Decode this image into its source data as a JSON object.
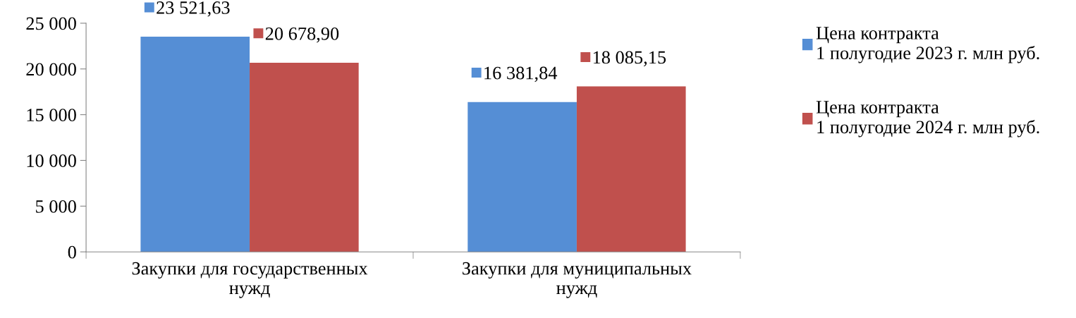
{
  "chart_data": {
    "type": "bar",
    "categories": [
      "Закупки для государственных\nнужд",
      "Закупки для муниципальных\nнужд"
    ],
    "series": [
      {
        "name": "Цена контракта\n1 полугодие 2023 г. млн руб.",
        "color": "#558ed5",
        "values": [
          23521.63,
          16381.84
        ],
        "value_labels": [
          "23 521,63",
          "16 381,84"
        ]
      },
      {
        "name": "Цена контракта\n1 полугодие 2024 г. млн руб.",
        "color": "#c0504d",
        "values": [
          20678.9,
          18085.15
        ],
        "value_labels": [
          "20 678,90",
          "18 085,15"
        ]
      }
    ],
    "ylim": [
      0,
      25000
    ],
    "yticks": [
      {
        "value": 0,
        "label": "0"
      },
      {
        "value": 5000,
        "label": "5 000"
      },
      {
        "value": 10000,
        "label": "10 000"
      },
      {
        "value": 15000,
        "label": "15 000"
      },
      {
        "value": 20000,
        "label": "20 000"
      },
      {
        "value": 25000,
        "label": "25 000"
      }
    ],
    "grid": false,
    "legend": "right"
  }
}
